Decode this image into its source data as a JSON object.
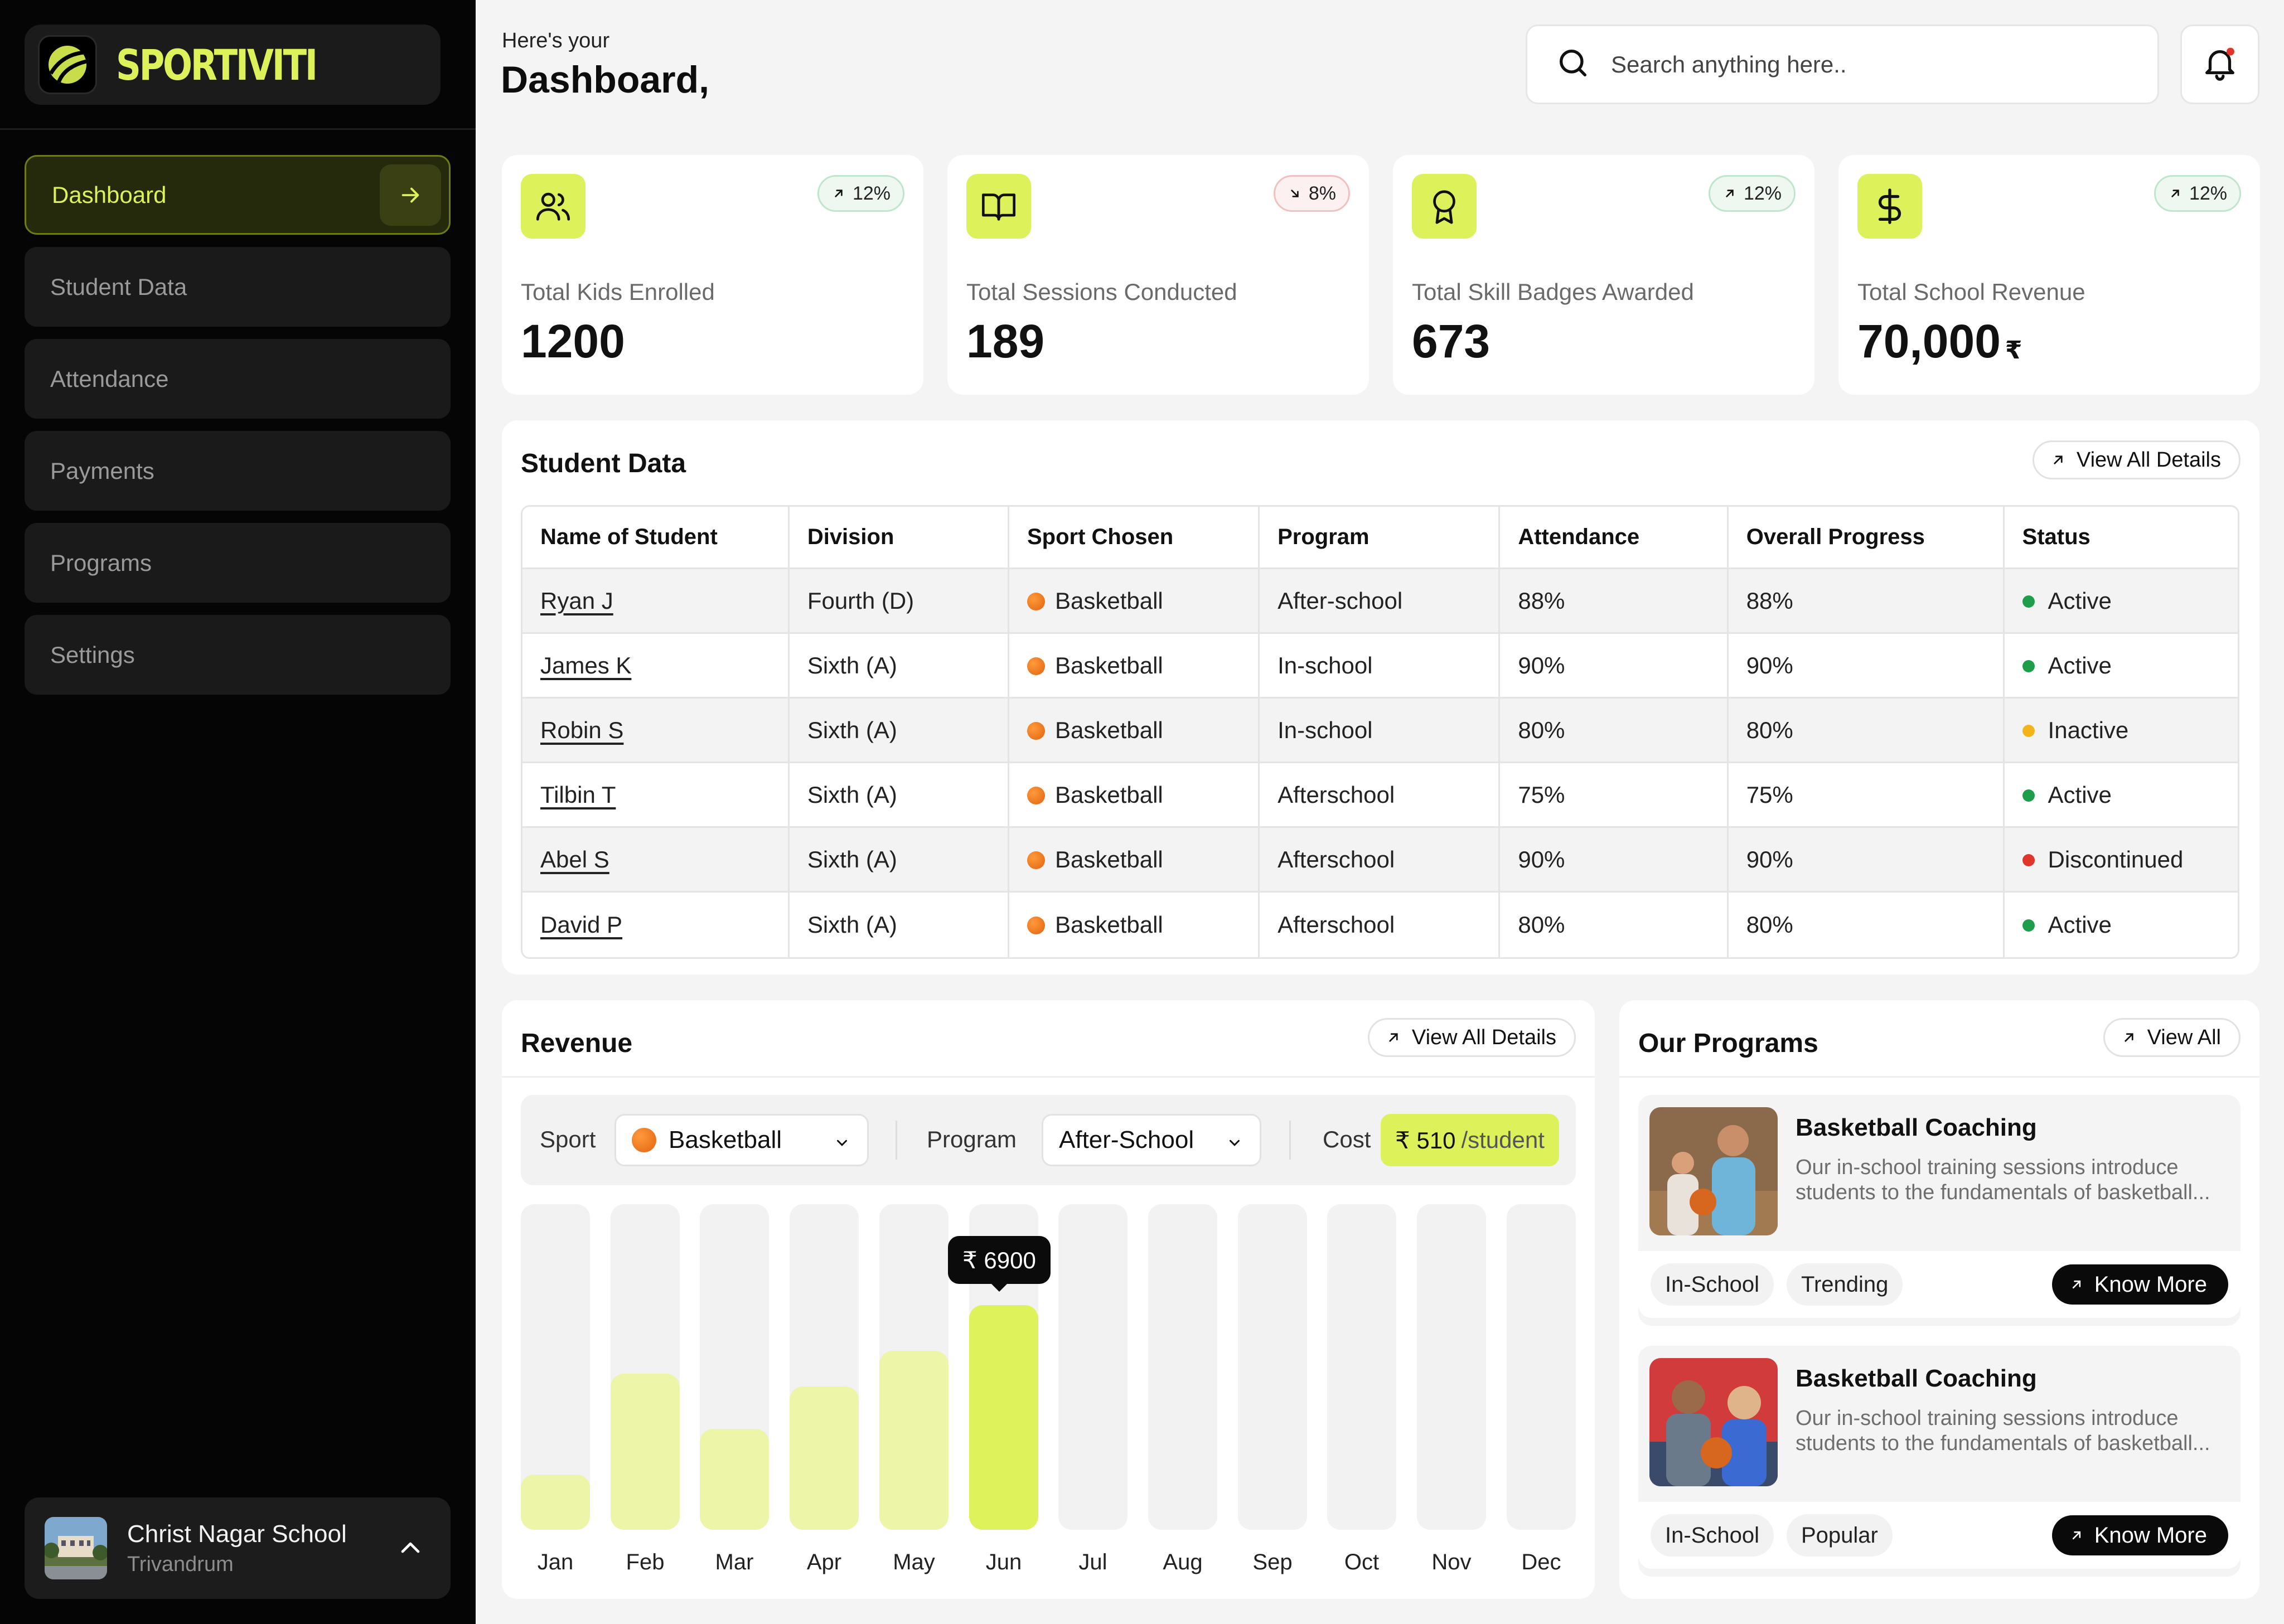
{
  "brand": {
    "name": "SPORTIVITI",
    "accent": "#DDF15A"
  },
  "sidebar": {
    "items": [
      {
        "label": "Dashboard",
        "active": true
      },
      {
        "label": "Student Data"
      },
      {
        "label": "Attendance"
      },
      {
        "label": "Payments"
      },
      {
        "label": "Programs"
      },
      {
        "label": "Settings"
      }
    ],
    "school": {
      "name": "Christ Nagar School",
      "city": "Trivandrum"
    }
  },
  "header": {
    "greeting": "Here's your",
    "title": "Dashboard,",
    "search_placeholder": "Search anything here.."
  },
  "stats": [
    {
      "icon": "users-icon",
      "label": "Total Kids Enrolled",
      "value": "1200",
      "change": "12%",
      "direction": "up"
    },
    {
      "icon": "book-open-icon",
      "label": "Total Sessions Conducted",
      "value": "189",
      "change": "8%",
      "direction": "down"
    },
    {
      "icon": "award-icon",
      "label": "Total Skill Badges Awarded",
      "value": "673",
      "change": "12%",
      "direction": "up"
    },
    {
      "icon": "dollar-icon",
      "label": "Total School Revenue",
      "value": "70,000",
      "currency": "₹",
      "change": "12%",
      "direction": "up"
    }
  ],
  "student_data": {
    "title": "Student Data",
    "view_all": "View All Details",
    "columns": [
      "Name of Student",
      "Division",
      "Sport Chosen",
      "Program",
      "Attendance",
      "Overall Progress",
      "Status"
    ],
    "rows": [
      {
        "name": "Ryan J",
        "division": "Fourth (D)",
        "sport": "Basketball",
        "program": "After-school",
        "attendance": "88%",
        "progress": "88%",
        "status": "Active"
      },
      {
        "name": "James K",
        "division": "Sixth (A)",
        "sport": "Basketball",
        "program": "In-school",
        "attendance": "90%",
        "progress": "90%",
        "status": "Active"
      },
      {
        "name": "Robin S",
        "division": "Sixth (A)",
        "sport": "Basketball",
        "program": "In-school",
        "attendance": "80%",
        "progress": "80%",
        "status": "Inactive"
      },
      {
        "name": "Tilbin T",
        "division": "Sixth (A)",
        "sport": "Basketball",
        "program": "Afterschool",
        "attendance": "75%",
        "progress": "75%",
        "status": "Active"
      },
      {
        "name": "Abel S",
        "division": "Sixth (A)",
        "sport": "Basketball",
        "program": "Afterschool",
        "attendance": "90%",
        "progress": "90%",
        "status": "Discontinued"
      },
      {
        "name": "David P",
        "division": "Sixth (A)",
        "sport": "Basketball",
        "program": "Afterschool",
        "attendance": "80%",
        "progress": "80%",
        "status": "Active"
      }
    ],
    "status_colors": {
      "Active": "#1E9E4A",
      "Inactive": "#F2B418",
      "Discontinued": "#E0352B"
    }
  },
  "revenue": {
    "title": "Revenue",
    "view_all": "View All Details",
    "sport_label": "Sport",
    "sport_value": "Basketball",
    "program_label": "Program",
    "program_value": "After-School",
    "cost_label": "Cost",
    "cost_value": "₹ 510",
    "cost_unit": "/student",
    "tooltip": "₹ 6900",
    "highlight_month": "Jun"
  },
  "chart_data": {
    "type": "bar",
    "categories": [
      "Jan",
      "Feb",
      "Mar",
      "Apr",
      "May",
      "Jun",
      "Jul",
      "Aug",
      "Sep",
      "Oct",
      "Nov",
      "Dec"
    ],
    "values": [
      1700,
      4800,
      3100,
      4400,
      5500,
      6900,
      0,
      0,
      0,
      0,
      0,
      0
    ],
    "ylim": [
      0,
      10000
    ],
    "grid": false
  },
  "programs": {
    "title": "Our Programs",
    "view_all": "View All",
    "items": [
      {
        "title": "Basketball Coaching",
        "desc": "Our in-school training sessions introduce students to the fundamentals of basketball...",
        "tags": [
          "In-School",
          "Trending"
        ],
        "cta": "Know More"
      },
      {
        "title": "Basketball Coaching",
        "desc": "Our in-school training sessions introduce students to the fundamentals of basketball...",
        "tags": [
          "In-School",
          "Popular"
        ],
        "cta": "Know More"
      }
    ]
  }
}
